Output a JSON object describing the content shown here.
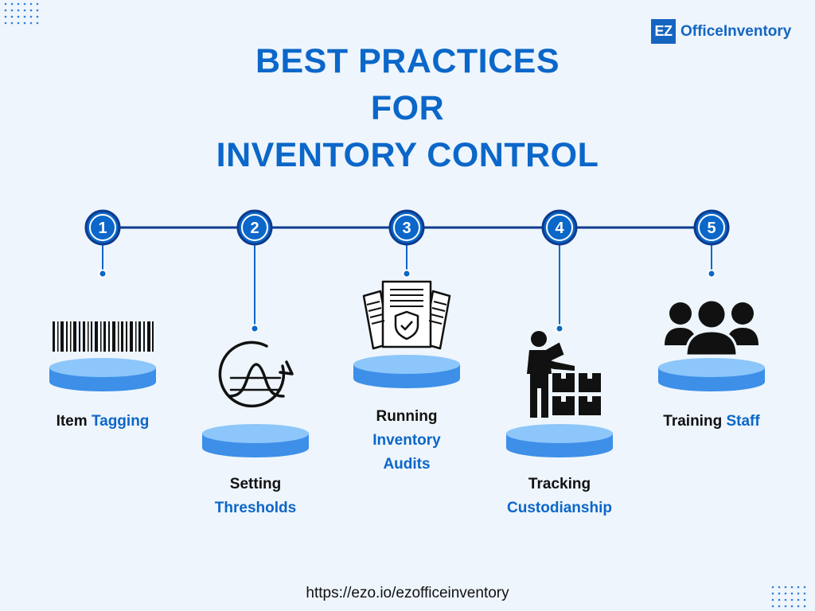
{
  "brand": {
    "badge": "EZ",
    "name": "OfficeInventory"
  },
  "title": {
    "line1": "BEST PRACTICES",
    "line2": "FOR",
    "line3": "INVENTORY CONTROL"
  },
  "steps": [
    {
      "number": "1",
      "label_a": "Item",
      "label_b": "Tagging",
      "icon": "barcode-icon"
    },
    {
      "number": "2",
      "label_a": "Setting",
      "label_b": "Thresholds",
      "icon": "threshold-wave-icon"
    },
    {
      "number": "3",
      "label_a": "Running",
      "label_b": "Inventory",
      "label_c": "Audits",
      "icon": "audit-documents-icon"
    },
    {
      "number": "4",
      "label_a": "Tracking",
      "label_b": "Custodianship",
      "icon": "worker-boxes-icon"
    },
    {
      "number": "5",
      "label_a": "Training",
      "label_b": "Staff",
      "icon": "team-icon"
    }
  ],
  "footer": {
    "url": "https://ezo.io/ezofficeinventory"
  },
  "colors": {
    "primary": "#0b67c9",
    "navy": "#0d3b8e",
    "background": "#eef5fc",
    "platform": "#5aaaf5"
  }
}
